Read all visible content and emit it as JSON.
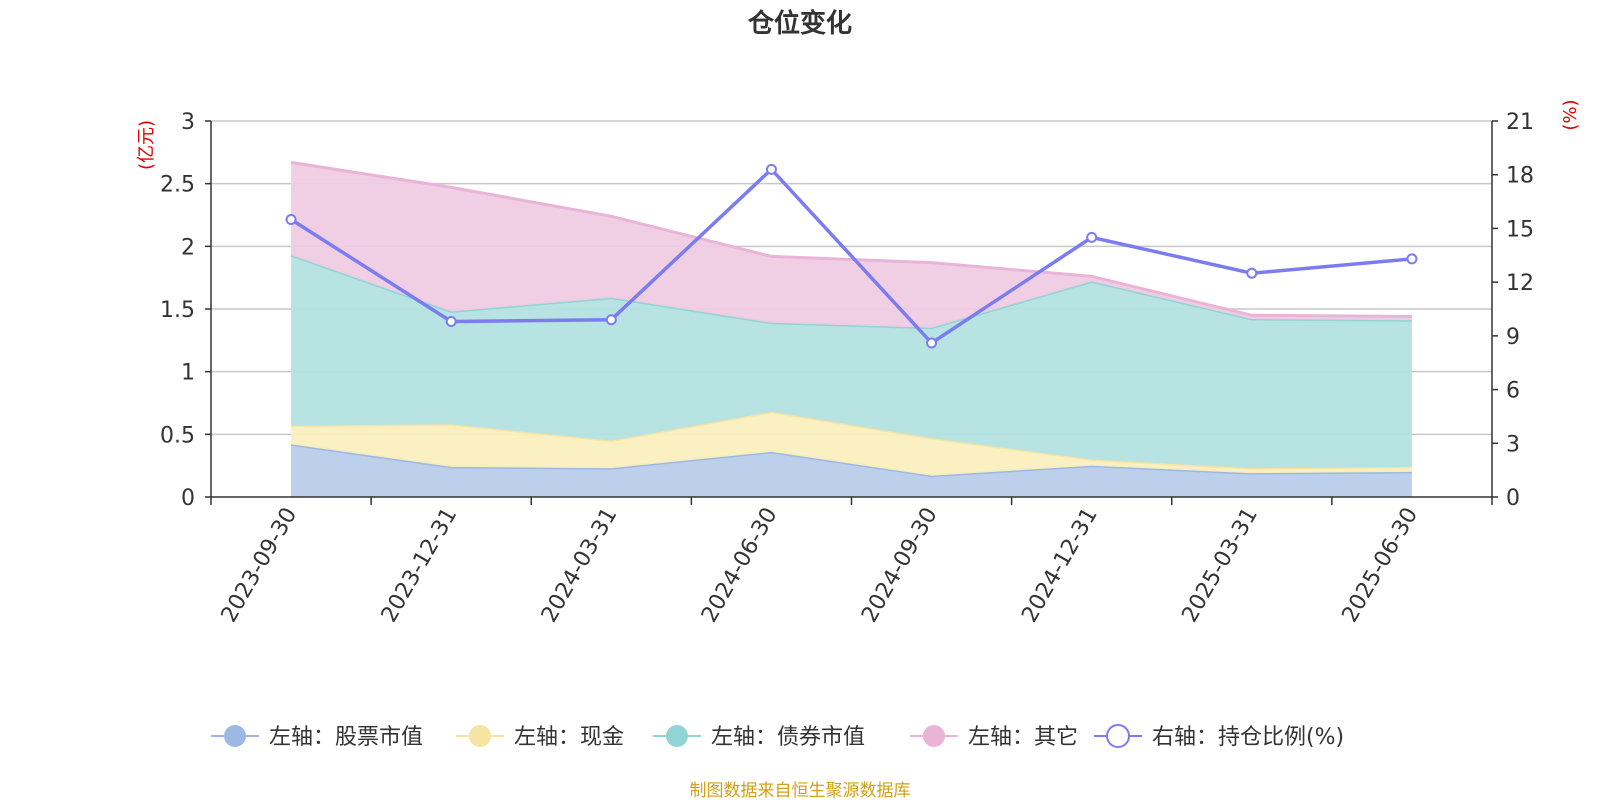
{
  "chart_data": {
    "type": "area",
    "title": "仓位变化",
    "categories": [
      "2023-09-30",
      "2023-12-31",
      "2024-03-31",
      "2024-06-30",
      "2024-09-30",
      "2024-12-31",
      "2025-03-31",
      "2025-06-30"
    ],
    "left_axis": {
      "unit": "(亿元)",
      "range": [
        0,
        3
      ],
      "ticks": [
        "0",
        "0.5",
        "1",
        "1.5",
        "2",
        "2.5",
        "3"
      ]
    },
    "right_axis": {
      "unit": "(%)",
      "range": [
        0,
        21
      ],
      "ticks": [
        "0",
        "3",
        "6",
        "9",
        "12",
        "15",
        "18",
        "21"
      ]
    },
    "stacked": true,
    "grid": true,
    "series": [
      {
        "name": "左轴：股票市值",
        "axis": "left",
        "type": "area",
        "color": "#9db8e3",
        "fill": "#b8cdea",
        "values": [
          0.42,
          0.24,
          0.23,
          0.36,
          0.17,
          0.25,
          0.19,
          0.2
        ]
      },
      {
        "name": "左轴：现金",
        "axis": "left",
        "type": "area",
        "color": "#f7e4a3",
        "fill": "#faefbe",
        "values": [
          0.15,
          0.34,
          0.22,
          0.32,
          0.3,
          0.05,
          0.04,
          0.04
        ]
      },
      {
        "name": "左轴：债券市值",
        "axis": "left",
        "type": "area",
        "color": "#92d3d3",
        "fill": "#b4e1e1",
        "values": [
          1.36,
          0.9,
          1.14,
          0.71,
          0.88,
          1.42,
          1.19,
          1.17
        ]
      },
      {
        "name": "左轴：其它",
        "axis": "left",
        "type": "area",
        "color": "#e9b4d8",
        "fill": "#efcce4",
        "values": [
          0.74,
          0.99,
          0.65,
          0.53,
          0.52,
          0.04,
          0.03,
          0.03
        ]
      },
      {
        "name": "右轴：持仓比例(%)",
        "axis": "right",
        "type": "line",
        "color": "#7b7cef",
        "values": [
          15.5,
          9.8,
          9.9,
          18.3,
          8.6,
          14.5,
          12.5,
          13.3
        ]
      }
    ],
    "legend_position": "bottom"
  },
  "source_note": "制图数据来自恒生聚源数据库"
}
